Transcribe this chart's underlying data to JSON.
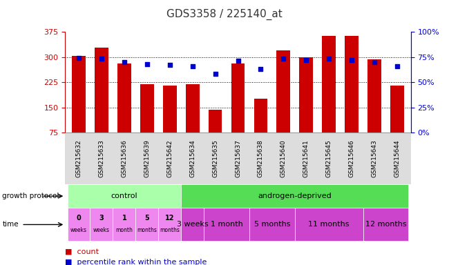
{
  "title": "GDS3358 / 225140_at",
  "samples": [
    "GSM215632",
    "GSM215633",
    "GSM215636",
    "GSM215639",
    "GSM215642",
    "GSM215634",
    "GSM215635",
    "GSM215637",
    "GSM215638",
    "GSM215640",
    "GSM215641",
    "GSM215645",
    "GSM215646",
    "GSM215643",
    "GSM215644"
  ],
  "counts": [
    304,
    327,
    280,
    218,
    214,
    218,
    142,
    280,
    176,
    320,
    300,
    362,
    362,
    293,
    215
  ],
  "percentiles": [
    74,
    73,
    70,
    68,
    67,
    66,
    58,
    71,
    63,
    73,
    72,
    73,
    72,
    70,
    66
  ],
  "ylim_left": [
    75,
    375
  ],
  "ylim_right": [
    0,
    100
  ],
  "yticks_left": [
    75,
    150,
    225,
    300,
    375
  ],
  "yticks_right": [
    0,
    25,
    50,
    75,
    100
  ],
  "bar_color": "#cc0000",
  "dot_color": "#0000cc",
  "bg_color": "#ffffff",
  "left_axis_color": "#cc0000",
  "right_axis_color": "#0000cc",
  "protocol_control_label": "control",
  "protocol_androgendeprived_label": "androgen-deprived",
  "protocol_control_color": "#aaffaa",
  "protocol_androgendeprived_color": "#55dd55",
  "time_color_control": "#ee88ee",
  "time_color_androgendeprived": "#cc44cc",
  "control_count": 5,
  "legend_count_label": "count",
  "legend_pct_label": "percentile rank within the sample",
  "adep_time_groups": [
    {
      "label": "3 weeks",
      "start": 5,
      "end": 6
    },
    {
      "label": "1 month",
      "start": 6,
      "end": 8
    },
    {
      "label": "5 months",
      "start": 8,
      "end": 10
    },
    {
      "label": "11 months",
      "start": 10,
      "end": 13
    },
    {
      "label": "12 months",
      "start": 13,
      "end": 15
    }
  ],
  "ctrl_time_labels": [
    {
      "line1": "0",
      "line2": "weeks"
    },
    {
      "line1": "3",
      "line2": "weeks"
    },
    {
      "line1": "1",
      "line2": "month"
    },
    {
      "line1": "5",
      "line2": "months"
    },
    {
      "line1": "12",
      "line2": "months"
    }
  ]
}
